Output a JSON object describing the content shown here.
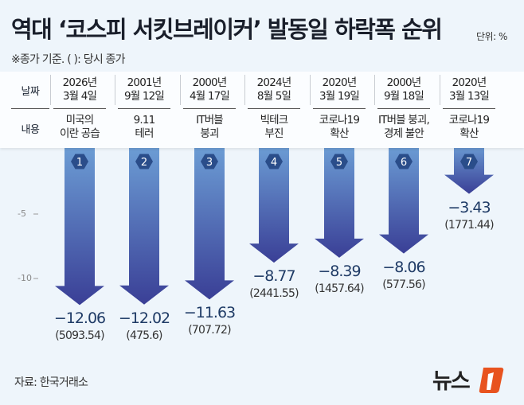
{
  "header": {
    "title": "역대 ‘코스피 서킷브레이커’ 발동일 하락폭 순위",
    "unit": "단위: %",
    "note": "※종가 기준. ( ): 당시 종가"
  },
  "table": {
    "date_label": "날짜",
    "content_label": "내용"
  },
  "source": "자료: 한국거래소",
  "logo": "뉴스1",
  "colors": {
    "bar_top": "#6d9fd6",
    "bar_bottom": "#3a3f96",
    "badge": "#2a4d8a",
    "value": "#1f3b66",
    "logo_accent": "#e8531f"
  },
  "chart_data": {
    "type": "bar",
    "orientation": "downward arrows",
    "ylim": [
      -13,
      0
    ],
    "y_ticks": [
      -5,
      -10
    ],
    "y_tick_labels": [
      "-5",
      "-10"
    ],
    "categories": [
      {
        "rank": "1",
        "year": "2026년",
        "day": "3월 4일",
        "content1": "미국의",
        "content2": "이란 공습",
        "value": -12.06,
        "value_label": "−12.06",
        "close": "(5093.54)"
      },
      {
        "rank": "2",
        "year": "2001년",
        "day": "9월 12일",
        "content1": "9.11",
        "content2": "테러",
        "value": -12.02,
        "value_label": "−12.02",
        "close": "(475.6)"
      },
      {
        "rank": "3",
        "year": "2000년",
        "day": "4월 17일",
        "content1": "IT버블",
        "content2": "붕괴",
        "value": -11.63,
        "value_label": "−11.63",
        "close": "(707.72)"
      },
      {
        "rank": "4",
        "year": "2024년",
        "day": "8월 5일",
        "content1": "빅테크",
        "content2": "부진",
        "value": -8.77,
        "value_label": "−8.77",
        "close": "(2441.55)"
      },
      {
        "rank": "5",
        "year": "2020년",
        "day": "3월 19일",
        "content1": "코로나19",
        "content2": "확산",
        "value": -8.39,
        "value_label": "−8.39",
        "close": "(1457.64)"
      },
      {
        "rank": "6",
        "year": "2000년",
        "day": "9월 18일",
        "content1": "IT버블 붕괴,",
        "content2": "경제 불안",
        "value": -8.06,
        "value_label": "−8.06",
        "close": "(577.56)"
      },
      {
        "rank": "7",
        "year": "2020년",
        "day": "3월 13일",
        "content1": "코로나19",
        "content2": "확산",
        "value": -3.43,
        "value_label": "−3.43",
        "close": "(1771.44)"
      }
    ]
  }
}
